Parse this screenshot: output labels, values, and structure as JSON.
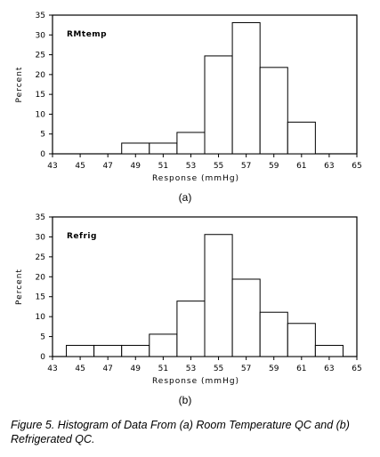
{
  "chart_data": [
    {
      "type": "bar",
      "panel_label": "(a)",
      "inset_label": "RMtemp",
      "xlabel": "Response (mmHg)",
      "ylabel": "Percent",
      "xlim": [
        43,
        65
      ],
      "ylim": [
        0,
        35
      ],
      "xticks": [
        "43",
        "45",
        "47",
        "49",
        "51",
        "53",
        "55",
        "57",
        "59",
        "61",
        "63",
        "65"
      ],
      "yticks": [
        "0",
        "5",
        "10",
        "15",
        "20",
        "25",
        "30",
        "35"
      ],
      "bin_width": 2,
      "bins": [
        {
          "start": 48,
          "end": 50,
          "value": 2.7
        },
        {
          "start": 50,
          "end": 52,
          "value": 2.7
        },
        {
          "start": 52,
          "end": 54,
          "value": 5.4
        },
        {
          "start": 54,
          "end": 56,
          "value": 24.7
        },
        {
          "start": 56,
          "end": 58,
          "value": 33.1
        },
        {
          "start": 58,
          "end": 60,
          "value": 21.8
        },
        {
          "start": 60,
          "end": 62,
          "value": 8.0
        }
      ]
    },
    {
      "type": "bar",
      "panel_label": "(b)",
      "inset_label": "Refrig",
      "xlabel": "Response (mmHg)",
      "ylabel": "Percent",
      "xlim": [
        43,
        65
      ],
      "ylim": [
        0,
        35
      ],
      "xticks": [
        "43",
        "45",
        "47",
        "49",
        "51",
        "53",
        "55",
        "57",
        "59",
        "61",
        "63",
        "65"
      ],
      "yticks": [
        "0",
        "5",
        "10",
        "15",
        "20",
        "25",
        "30",
        "35"
      ],
      "bin_width": 2,
      "bins": [
        {
          "start": 44,
          "end": 46,
          "value": 2.8
        },
        {
          "start": 46,
          "end": 48,
          "value": 2.8
        },
        {
          "start": 48,
          "end": 50,
          "value": 2.8
        },
        {
          "start": 50,
          "end": 52,
          "value": 5.6
        },
        {
          "start": 52,
          "end": 54,
          "value": 13.9
        },
        {
          "start": 54,
          "end": 56,
          "value": 30.6
        },
        {
          "start": 56,
          "end": 58,
          "value": 19.4
        },
        {
          "start": 58,
          "end": 60,
          "value": 11.1
        },
        {
          "start": 60,
          "end": 62,
          "value": 8.3
        },
        {
          "start": 62,
          "end": 64,
          "value": 2.8
        }
      ]
    }
  ],
  "caption": {
    "text": "Figure 5.    Histogram of Data From (a) Room Temperature QC and (b) Refrigerated QC."
  }
}
